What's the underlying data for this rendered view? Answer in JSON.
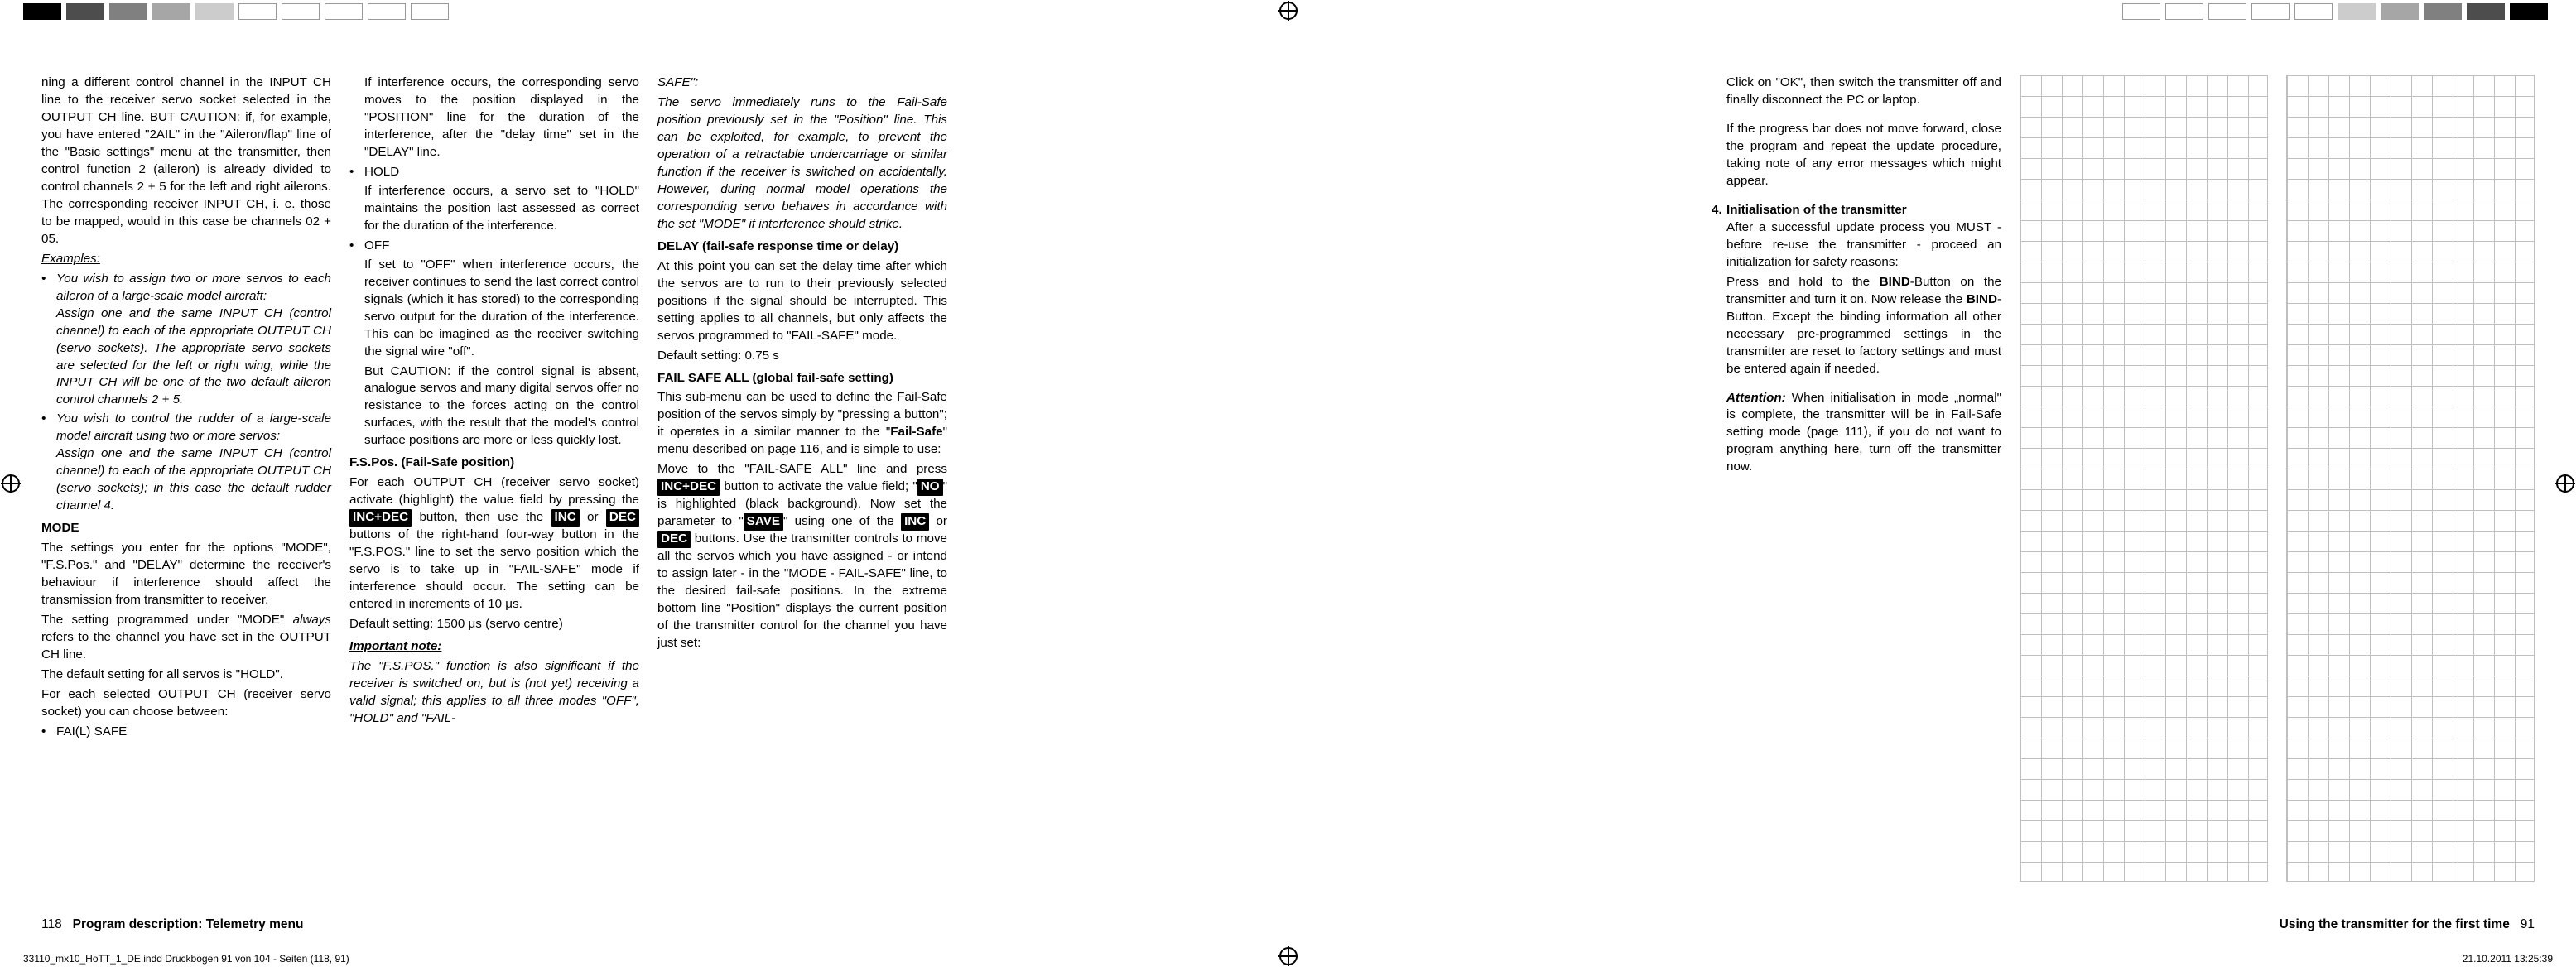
{
  "left_page": {
    "number": "118",
    "title": "Program description: Telemetry menu",
    "col1": {
      "p1": "ning a different control channel in the INPUT CH line to the receiver servo socket selected in the OUTPUT CH line. BUT CAUTION: if, for example, you have entered \"2AIL\" in the \"Aileron/flap\" line of the \"Basic settings\" menu at the transmitter, then control function 2 (aileron) is already divided to control channels 2 + 5 for the left and right ailerons. The corresponding receiver INPUT CH, i. e. those to be mapped, would in this case be channels 02 + 05.",
      "examples_label": "Examples:",
      "ex1a": "You wish to assign two or more servos to each aileron of a large-scale model aircraft:",
      "ex1b": "Assign one and the same INPUT CH (control channel) to each of the appropriate OUTPUT CH (servo sockets). The appropriate servo sockets are selected for the left or right wing, while the INPUT CH will be one of the two default aileron control channels 2 + 5.",
      "ex2a": "You wish to control the rudder of a large-scale model aircraft using two or more servos:",
      "ex2b": "Assign one and the same INPUT CH (control channel) to each of the appropriate OUTPUT CH (servo sockets); in this case the default rudder channel 4.",
      "mode_label": "MODE",
      "mode_p1": "The settings you enter for the options \"MODE\", \"F.S.Pos.\" and \"DELAY\" determine the receiver's behaviour if interference should affect the transmission from transmitter to receiver.",
      "mode_p2a": "The setting programmed under \"MODE\" ",
      "mode_p2b": "always",
      "mode_p2c": " refers to the channel you have set in the OUTPUT CH line.",
      "mode_p3": "The default setting for all servos is \"HOLD\".",
      "mode_p4": "For each selected OUTPUT CH (receiver servo socket) you can choose between:",
      "fail_label": "FAI(L) SAFE"
    },
    "col2": {
      "p1": "If interference occurs, the corresponding servo moves to the position displayed in the \"POSITION\" line for the duration of the interference, after the \"delay time\" set in the \"DELAY\" line.",
      "hold_label": "HOLD",
      "hold_p": "If interference occurs, a servo set to \"HOLD\" maintains the position last assessed as correct for the duration of the interference.",
      "off_label": "OFF",
      "off_p1": "If set to \"OFF\" when interference occurs, the receiver continues to send the last correct control signals (which it has stored) to the corresponding servo output for the duration of the interference. This can be imagined as the receiver switching the signal wire \"off\".",
      "off_p2": "But CAUTION: if the control signal is absent, analogue servos and many digital servos offer no resistance to the forces acting on the control surfaces, with the result that the model's control surface positions are more or less quickly lost.",
      "fspos_label": "F.S.Pos. (Fail-Safe position)",
      "fspos_p1a": "For each OUTPUT CH (receiver servo socket) activate (highlight) the value field by pressing the ",
      "fspos_inv1": "INC+DEC",
      "fspos_p1b": " button, then use the ",
      "fspos_inv2": "INC",
      "fspos_p1c": " or ",
      "fspos_inv3": "DEC",
      "fspos_p1d": " buttons of the right-hand four-way button in the \"F.S.POS.\" line to set the servo position which the servo is to take up in \"FAIL-SAFE\" mode if interference should occur. The setting can be entered in increments of 10 μs.",
      "fspos_p2": "Default setting: 1500 μs (servo centre)",
      "impnote_label": "Important note:",
      "impnote_p": "The \"F.S.POS.\" function is also significant if the receiver is switched on, but is (not yet) receiving a valid signal; this applies to all three modes \"OFF\", \"HOLD\" and \"FAIL-"
    },
    "col3": {
      "safe_label": "SAFE\":",
      "safe_p": "The servo immediately runs to the Fail-Safe position previously set in the \"Position\" line. This can be exploited, for example, to prevent the operation of a retractable undercarriage or similar function if the receiver is switched on accidentally. However, during normal model operations the corresponding servo behaves in accordance with the set \"MODE\" if interference should strike.",
      "delay_label": "DELAY (fail-safe response time or delay)",
      "delay_p1": "At this point you can set the delay time after which the servos are to run to their previously selected positions if the signal should be interrupted. This setting applies to all channels, but only affects the servos programmed to \"FAIL-SAFE\" mode.",
      "delay_p2": "Default setting: 0.75 s",
      "fsall_label": "FAIL SAFE ALL (global fail-safe setting)",
      "fsall_p1a": "This sub-menu can be used to define the Fail-Safe position of the servos simply by \"pressing a button\"; it operates in a similar manner to the \"",
      "fsall_p1b": "Fail-Safe",
      "fsall_p1c": "\" menu described on page 116, and is simple to use:",
      "fsall_p2a": "Move to the \"FAIL-SAFE ALL\" line and press ",
      "fsall_inv1": "INC+DEC",
      "fsall_p2b": " button to activate the value field; \"",
      "fsall_inv2": "NO",
      "fsall_p2c": "\" is highlighted (black background). Now set the parameter to \"",
      "fsall_inv3": "SAVE",
      "fsall_p2d": "\" using one of the ",
      "fsall_inv4": "INC",
      "fsall_p2e": " or ",
      "fsall_inv5": "DEC",
      "fsall_p2f": " buttons. Use the transmitter controls to move all the servos which you have assigned - or intend to assign later - in the \"MODE - FAIL-SAFE\" line, to the desired fail-safe positions. In the extreme bottom line \"Position\" displays the current position of the transmitter control for the channel you have just set:"
    }
  },
  "right_page": {
    "number": "91",
    "title": "Using the transmitter for the first time",
    "col1": {
      "p1": "Click on \"OK\", then switch the transmitter off and finally disconnect the PC or laptop.",
      "p2": "If the progress bar does not move forward, close the program and repeat the update procedure, taking note of any error messages which might appear.",
      "item4_num": "4.",
      "item4_label": "Initialisation of the transmitter",
      "item4_p1": "After a successful update process you MUST - before re-use the transmitter - proceed an initialization for safety reasons:",
      "item4_p2a": "Press and hold to the ",
      "item4_p2b": "BIND",
      "item4_p2c": "-Button on the transmitter and turn it on. Now release the ",
      "item4_p2d": "BIND",
      "item4_p2e": "-Button. Except the binding information all other necessary pre-programmed settings in the transmitter are reset to factory settings and must be entered again if needed.",
      "attn_label": "Attention:",
      "attn_p": " When initialisation in mode „normal\" is complete, the transmitter will be in Fail-Safe setting mode (page 111), if you do not want to program anything here, turn off the transmitter now."
    }
  },
  "printmark_left": "33110_mx10_HoTT_1_DE.indd   Druckbogen 91 von 104 - Seiten (118, 91)",
  "printmark_right": "21.10.2011   13:25:39",
  "swatches": [
    "#000000",
    "#4d4d4d",
    "#808080",
    "#a6a6a6",
    "#cccccc",
    "#ffffff",
    "#ffffff",
    "#ffffff",
    "#ffffff",
    "#ffffff"
  ]
}
